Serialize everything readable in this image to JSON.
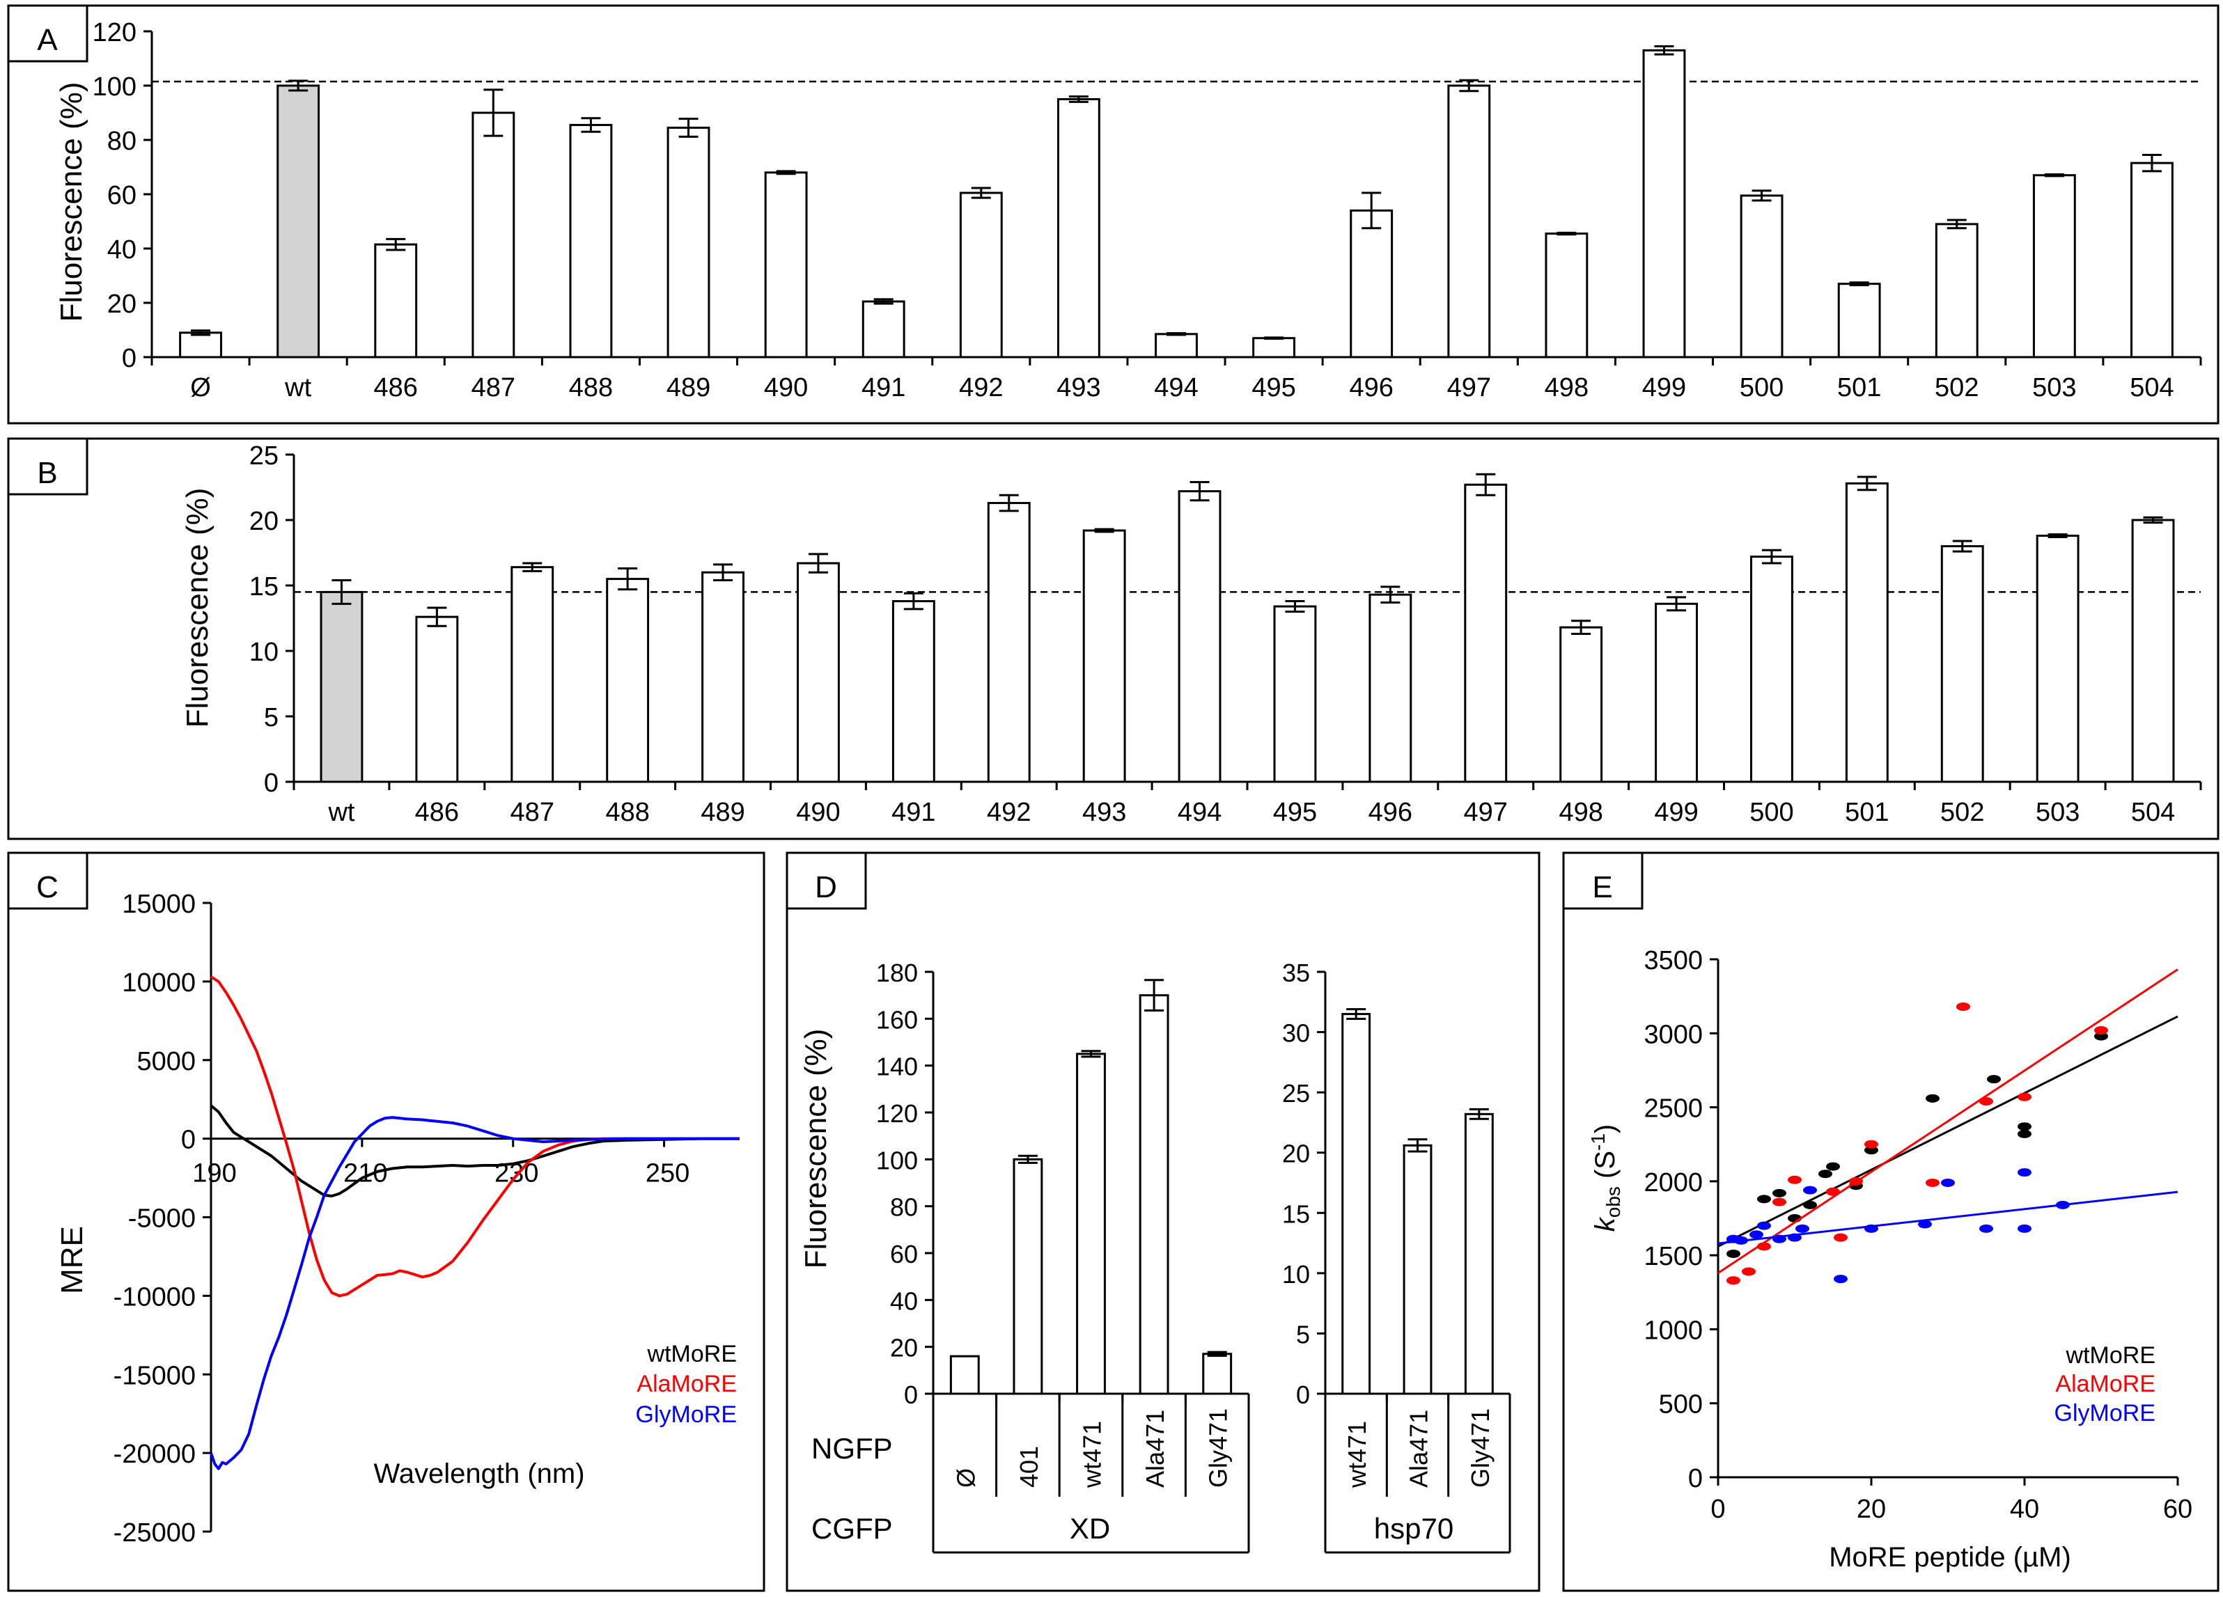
{
  "chart_data": [
    {
      "panel": "A",
      "type": "bar",
      "ylabel": "Fluorescence (%)",
      "ylim": [
        0,
        120
      ],
      "yticks": [
        0,
        20,
        40,
        60,
        80,
        100,
        120
      ],
      "reference_line": 101.5,
      "categories": [
        "Ø",
        "wt",
        "486",
        "487",
        "488",
        "489",
        "490",
        "491",
        "492",
        "493",
        "494",
        "495",
        "496",
        "497",
        "498",
        "499",
        "500",
        "501",
        "502",
        "503",
        "504"
      ],
      "values": [
        9,
        100,
        41.5,
        90,
        85.5,
        84.5,
        68,
        20.5,
        60.5,
        95,
        8.5,
        7,
        54,
        100,
        45.5,
        113,
        59.5,
        27,
        49,
        67,
        71.5
      ],
      "errors": [
        0.8,
        1.8,
        2,
        8.5,
        2.5,
        3.3,
        0.5,
        0.8,
        1.8,
        1,
        0.3,
        0.2,
        6.5,
        2,
        0.3,
        1.5,
        1.8,
        0.5,
        1.5,
        0.3,
        3
      ],
      "highlight": [
        1
      ],
      "colors": {
        "bar": "#ffffff",
        "highlight": "#d3d3d3"
      }
    },
    {
      "panel": "B",
      "type": "bar",
      "ylabel": "Fluorescence (%)",
      "ylim": [
        0,
        25
      ],
      "yticks": [
        0,
        5,
        10,
        15,
        20,
        25
      ],
      "reference_line": 14.5,
      "categories": [
        "wt",
        "486",
        "487",
        "488",
        "489",
        "490",
        "491",
        "492",
        "493",
        "494",
        "495",
        "496",
        "497",
        "498",
        "499",
        "500",
        "501",
        "502",
        "503",
        "504"
      ],
      "values": [
        14.5,
        12.6,
        16.4,
        15.5,
        16,
        16.7,
        13.8,
        21.3,
        19.2,
        22.2,
        13.4,
        14.3,
        22.7,
        11.8,
        13.6,
        17.2,
        22.8,
        18,
        18.8,
        20
      ],
      "errors": [
        0.9,
        0.7,
        0.3,
        0.8,
        0.6,
        0.7,
        0.6,
        0.6,
        0.1,
        0.7,
        0.4,
        0.6,
        0.8,
        0.5,
        0.5,
        0.5,
        0.5,
        0.4,
        0.1,
        0.2
      ],
      "highlight": [
        0
      ],
      "colors": {
        "bar": "#ffffff",
        "highlight": "#d3d3d3"
      }
    },
    {
      "panel": "C",
      "type": "line",
      "xlabel": "Wavelength (nm)",
      "ylabel": "MRE",
      "xlim": [
        190,
        260
      ],
      "ylim": [
        -25000,
        15000
      ],
      "xticks": [
        190,
        210,
        230,
        250
      ],
      "yticks": [
        -25000,
        -20000,
        -15000,
        -10000,
        -5000,
        0,
        5000,
        10000,
        15000
      ],
      "series": [
        {
          "name": "wtMoRE",
          "color": "#000000",
          "x": [
            190,
            191,
            192,
            193,
            194,
            195,
            196,
            198,
            200,
            202,
            204,
            205,
            206,
            207,
            208,
            210,
            212,
            214,
            216,
            218,
            220,
            222,
            224,
            226,
            228,
            230,
            232,
            234,
            236,
            238,
            240,
            242,
            245,
            250,
            255,
            260
          ],
          "y": [
            2100,
            1700,
            1000,
            400,
            100,
            -200,
            -500,
            -1100,
            -1900,
            -2700,
            -3300,
            -3600,
            -3650,
            -3500,
            -3200,
            -2500,
            -2100,
            -1900,
            -1800,
            -1800,
            -1750,
            -1700,
            -1750,
            -1700,
            -1700,
            -1600,
            -1400,
            -1100,
            -800,
            -500,
            -300,
            -150,
            -100,
            -50,
            0,
            0
          ]
        },
        {
          "name": "AlaMoRE",
          "color": "#ff0000",
          "x": [
            190,
            191,
            192,
            193,
            194,
            195,
            196,
            197,
            198,
            199,
            200,
            201,
            202,
            203,
            204,
            205,
            206,
            207,
            208,
            209,
            210,
            211,
            212,
            214,
            215,
            216,
            218,
            219,
            220,
            222,
            224,
            226,
            228,
            230,
            232,
            234,
            236,
            238,
            240,
            242,
            245,
            250,
            255,
            260
          ],
          "y": [
            10300,
            10000,
            9300,
            8500,
            7600,
            6600,
            5600,
            4300,
            2900,
            1300,
            -300,
            -2000,
            -4000,
            -6000,
            -7700,
            -9000,
            -9800,
            -10000,
            -9900,
            -9600,
            -9300,
            -9000,
            -8700,
            -8600,
            -8400,
            -8500,
            -8800,
            -8700,
            -8500,
            -7800,
            -6600,
            -5200,
            -3900,
            -2600,
            -1500,
            -800,
            -400,
            -150,
            -50,
            0,
            0,
            0,
            0,
            0
          ]
        },
        {
          "name": "GlyMoRE",
          "color": "#0000ff",
          "x": [
            190,
            190.5,
            191,
            191.5,
            192,
            193,
            194,
            195,
            196,
            197,
            198,
            199,
            200,
            201,
            202,
            203,
            204,
            205,
            206,
            207,
            208,
            209,
            210,
            211,
            212,
            213,
            214,
            215,
            216,
            218,
            219,
            220,
            222,
            224,
            226,
            228,
            230,
            232,
            234,
            236,
            240,
            245,
            250,
            255,
            260
          ],
          "y": [
            -20000,
            -20700,
            -21000,
            -20600,
            -20700,
            -20300,
            -19800,
            -18800,
            -17000,
            -15300,
            -13800,
            -12600,
            -11200,
            -9600,
            -8000,
            -6300,
            -5000,
            -3600,
            -2700,
            -1800,
            -1000,
            -200,
            300,
            800,
            1100,
            1300,
            1350,
            1300,
            1250,
            1200,
            1150,
            1100,
            1000,
            800,
            500,
            200,
            0,
            -100,
            -200,
            -150,
            -50,
            0,
            0,
            0,
            0
          ]
        }
      ]
    },
    {
      "panel": "D-left",
      "type": "bar",
      "ylabel": "Fluorescence (%)",
      "ylim": [
        0,
        180
      ],
      "yticks": [
        0,
        20,
        40,
        60,
        80,
        100,
        120,
        140,
        160,
        180
      ],
      "categories": [
        "Ø",
        "401",
        "wt471",
        "Ala471",
        "Gly471"
      ],
      "values": [
        16,
        100,
        145,
        170,
        17
      ],
      "errors": [
        0,
        1.5,
        1.2,
        6.5,
        0.8
      ]
    },
    {
      "panel": "D-right",
      "type": "bar",
      "ylim": [
        0,
        35
      ],
      "yticks": [
        0,
        5,
        10,
        15,
        20,
        25,
        30,
        35
      ],
      "categories": [
        "wt471",
        "Ala471",
        "Gly471"
      ],
      "values": [
        31.5,
        20.6,
        23.2
      ],
      "errors": [
        0.4,
        0.5,
        0.4
      ]
    },
    {
      "panel": "E",
      "type": "scatter",
      "xlabel": "MoRE peptide (µM)",
      "ylabel": "kobs (S-1)",
      "xlim": [
        0,
        60
      ],
      "ylim": [
        0,
        3500
      ],
      "xticks": [
        0,
        20,
        40,
        60
      ],
      "yticks": [
        0,
        500,
        1000,
        1500,
        2000,
        2500,
        3000,
        3500
      ],
      "series": [
        {
          "name": "wtMoRE",
          "color": "#000000",
          "x": [
            2,
            6,
            8,
            10,
            12,
            14,
            15,
            18,
            20,
            28,
            36,
            40,
            40,
            50
          ],
          "y": [
            1510,
            1880,
            1920,
            1750,
            1840,
            2050,
            2100,
            1970,
            2210,
            2560,
            2690,
            2370,
            2320,
            2980
          ],
          "fit": {
            "slope": 25.9,
            "intercept": 1560
          }
        },
        {
          "name": "AlaMoRE",
          "color": "#ff0000",
          "x": [
            2,
            4,
            6,
            8,
            10,
            15,
            16,
            18,
            20,
            28,
            32,
            35,
            40,
            50
          ],
          "y": [
            1330,
            1390,
            1560,
            1860,
            2010,
            1930,
            1620,
            2000,
            2250,
            1990,
            3180,
            2540,
            2570,
            3020
          ],
          "fit": {
            "slope": 34.2,
            "intercept": 1380
          }
        },
        {
          "name": "GlyMoRE",
          "color": "#0000ff",
          "x": [
            2,
            3,
            5,
            6,
            8,
            10,
            11,
            12,
            16,
            20,
            27,
            30,
            35,
            40,
            40,
            45
          ],
          "y": [
            1610,
            1600,
            1640,
            1700,
            1610,
            1620,
            1680,
            1940,
            1340,
            1680,
            1710,
            1990,
            1680,
            2060,
            1680,
            1840
          ],
          "fit": {
            "slope": 5.8,
            "intercept": 1580
          }
        }
      ]
    }
  ],
  "panels": {
    "a": "A",
    "b": "B",
    "c": "C",
    "d": "D",
    "e": "E"
  },
  "panelD": {
    "row_ngfp": "NGFP",
    "row_cgfp": "CGFP",
    "group_xd": "XD",
    "group_hsp70": "hsp70"
  }
}
